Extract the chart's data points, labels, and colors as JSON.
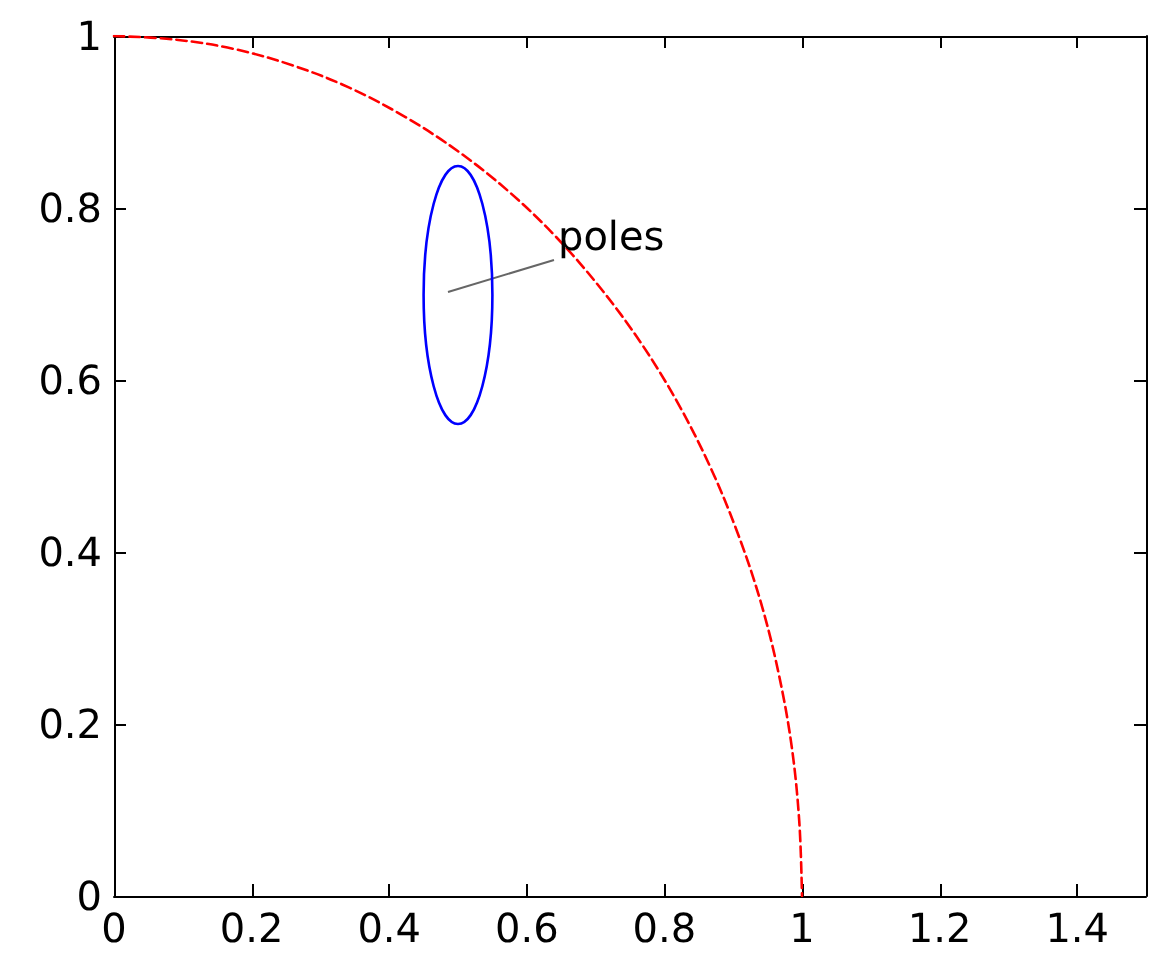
{
  "chart_data": {
    "type": "line",
    "xlim": [
      0,
      1.5
    ],
    "ylim": [
      0,
      1
    ],
    "xticks": [
      0,
      0.2,
      0.4,
      0.6,
      0.8,
      1,
      1.2,
      1.4
    ],
    "yticks": [
      0,
      0.2,
      0.4,
      0.6,
      0.8,
      1
    ],
    "grid": false,
    "marker": "none",
    "series": [
      {
        "color": "#ff0000",
        "line_style": "dashed",
        "x": [
          0,
          0.087,
          0.174,
          0.259,
          0.342,
          0.423,
          0.5,
          0.574,
          0.643,
          0.707,
          0.766,
          0.819,
          0.866,
          0.906,
          0.94,
          0.966,
          0.985,
          0.996,
          1
        ],
        "values": [
          1,
          0.996,
          0.985,
          0.966,
          0.94,
          0.906,
          0.866,
          0.819,
          0.766,
          0.707,
          0.643,
          0.574,
          0.5,
          0.423,
          0.342,
          0.259,
          0.174,
          0.087,
          0
        ]
      }
    ],
    "annotations": [
      "poles"
    ]
  }
}
